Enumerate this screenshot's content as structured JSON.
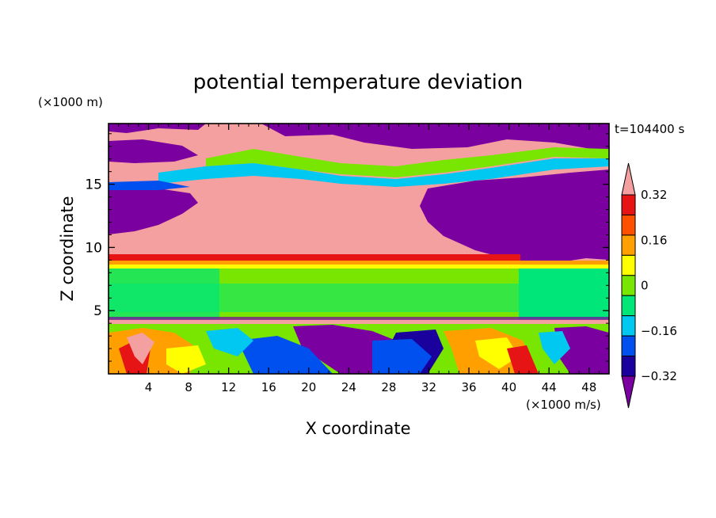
{
  "chart_data": {
    "type": "heatmap",
    "title": "potential temperature deviation",
    "xlabel": "X coordinate",
    "ylabel": "Z coordinate",
    "x_unit": "(×1000 m/s)",
    "y_unit": "(×1000 m)",
    "time_label": "t=104400 s",
    "xlim": [
      0,
      50
    ],
    "ylim": [
      0,
      19.8
    ],
    "x_ticks": [
      4,
      8,
      12,
      16,
      20,
      24,
      28,
      32,
      36,
      40,
      44,
      48
    ],
    "x_tick_labels": [
      "4",
      "8",
      "12",
      "16",
      "20",
      "24",
      "28",
      "32",
      "36",
      "40",
      "44",
      "48"
    ],
    "y_ticks": [
      5,
      10,
      15
    ],
    "y_tick_labels": [
      "5",
      "10",
      "15"
    ],
    "colorbar": {
      "levels": [
        -0.4,
        -0.32,
        -0.24,
        -0.16,
        -0.08,
        0,
        0.08,
        0.16,
        0.24,
        0.32,
        0.4
      ],
      "tick_values": [
        0.32,
        0.16,
        0,
        -0.16,
        -0.32
      ],
      "tick_labels": [
        "0.32",
        "0.16",
        "0",
        "−0.16",
        "−0.32"
      ],
      "colors": [
        "#7b00a0",
        "#1a009c",
        "#0050f0",
        "#00c8f0",
        "#00e678",
        "#78e600",
        "#ffff00",
        "#ffa000",
        "#ff5000",
        "#e61414",
        "#f5a0a0"
      ],
      "extend": "both"
    },
    "regions": [
      {
        "z_range": [
          0,
          4.5
        ],
        "description": "turbulent boundary layer, mixed warm/cold eddies"
      },
      {
        "z_range": [
          4.5,
          9.0
        ],
        "value_range": [
          -0.08,
          0.08
        ]
      },
      {
        "z_range": [
          9.0,
          10.0
        ],
        "value_range": [
          0.24,
          0.4
        ]
      },
      {
        "z_range": [
          10.0,
          14.5
        ],
        "value": "> 0.4 (x 4-30), < -0.4 (x > 33)"
      },
      {
        "z_range": [
          14.5,
          19.8
        ],
        "description": "banded warm/cold layers"
      }
    ]
  }
}
